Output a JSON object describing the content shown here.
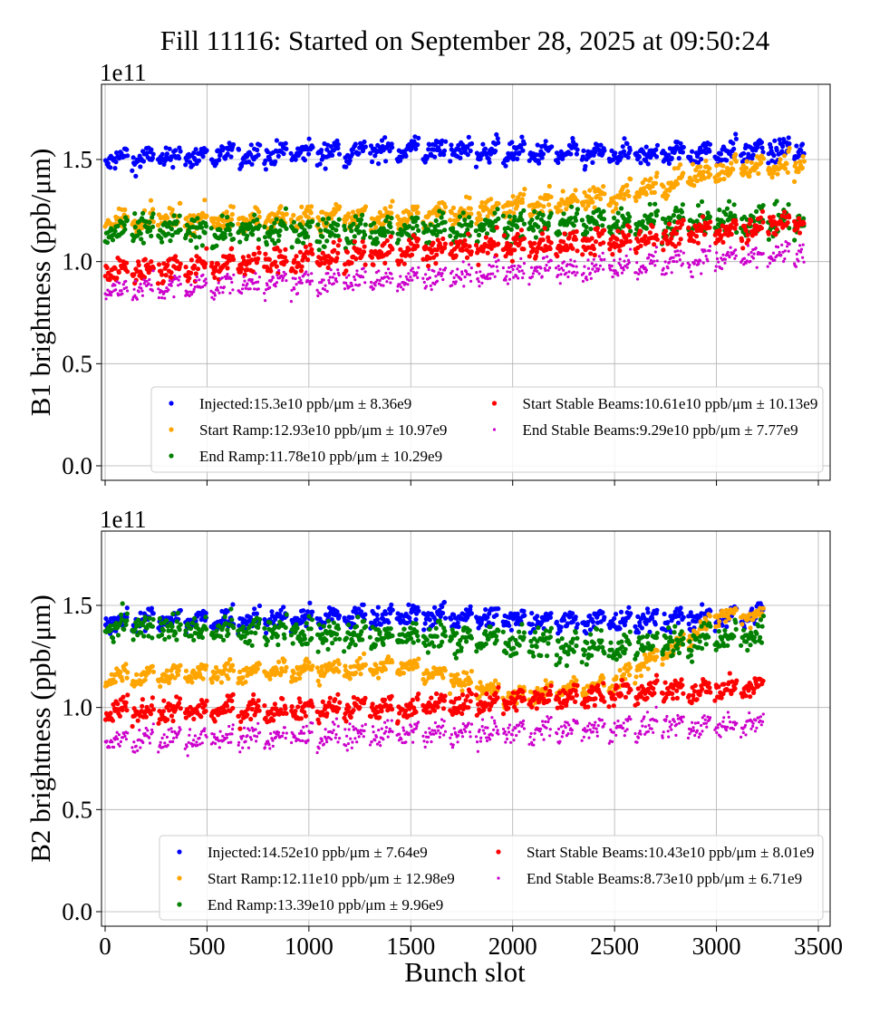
{
  "chart_data": [
    {
      "type": "scatter",
      "title": "Fill 11116: Started on September 28, 2025 at 09:50:24",
      "ylabel": "B1 brightness (ppb/μm)",
      "xlabel": "",
      "offset_label": "1e11",
      "xlim": [
        0,
        3500
      ],
      "ylim": [
        -0.05,
        1.87
      ],
      "xticks": [
        "0",
        "500",
        "1000",
        "1500",
        "2000",
        "2500",
        "3000",
        "3500"
      ],
      "yticks": [
        "0.0",
        "0.5",
        "1.0",
        "1.5"
      ],
      "grid": true,
      "legend_position": "lower-right",
      "bunch_range": [
        0,
        3430
      ],
      "series": [
        {
          "name": "Injected",
          "legend": "Injected:15.3e10 ppb/μm ± 8.36e9",
          "color": "#0000ff",
          "spread": 0.05,
          "levels": [
            [
              0,
              1.5
            ],
            [
              1500,
              1.55
            ],
            [
              2500,
              1.52
            ],
            [
              3430,
              1.55
            ]
          ]
        },
        {
          "name": "Start Ramp",
          "legend": "Start Ramp:12.93e10 ppb/μm ± 10.97e9",
          "color": "#ffa500",
          "spread": 0.05,
          "levels": [
            [
              0,
              1.2
            ],
            [
              1500,
              1.22
            ],
            [
              2500,
              1.32
            ],
            [
              3000,
              1.45
            ],
            [
              3430,
              1.48
            ]
          ]
        },
        {
          "name": "End Ramp",
          "legend": "End Ramp:11.78e10 ppb/μm ± 10.29e9",
          "color": "#008000",
          "spread": 0.07,
          "levels": [
            [
              0,
              1.15
            ],
            [
              1500,
              1.15
            ],
            [
              2500,
              1.2
            ],
            [
              3430,
              1.2
            ]
          ]
        },
        {
          "name": "Start Stable Beams",
          "legend": "Start Stable Beams:10.61e10 ppb/μm ± 10.13e9",
          "color": "#ff0000",
          "spread": 0.06,
          "levels": [
            [
              0,
              0.95
            ],
            [
              1500,
              1.05
            ],
            [
              2500,
              1.1
            ],
            [
              3430,
              1.2
            ]
          ]
        },
        {
          "name": "End Stable Beams",
          "legend": "End Stable Beams:9.29e10 ppb/μm ± 7.77e9",
          "color": "#cc00cc",
          "spread": 0.05,
          "levels": [
            [
              0,
              0.86
            ],
            [
              1500,
              0.92
            ],
            [
              2500,
              0.98
            ],
            [
              3430,
              1.04
            ]
          ]
        }
      ]
    },
    {
      "type": "scatter",
      "ylabel": "B2 brightness (ppb/μm)",
      "xlabel": "Bunch slot",
      "offset_label": "1e11",
      "xlim": [
        0,
        3500
      ],
      "ylim": [
        -0.05,
        1.87
      ],
      "xticks": [
        "0",
        "500",
        "1000",
        "1500",
        "2000",
        "2500",
        "3000",
        "3500"
      ],
      "yticks": [
        "0.0",
        "0.5",
        "1.0",
        "1.5"
      ],
      "grid": true,
      "legend_position": "lower-right",
      "bunch_range": [
        0,
        3230
      ],
      "series": [
        {
          "name": "Injected",
          "legend": "Injected:14.52e10 ppb/μm ± 7.64e9",
          "color": "#0000ff",
          "spread": 0.05,
          "levels": [
            [
              0,
              1.42
            ],
            [
              1600,
              1.45
            ],
            [
              2500,
              1.42
            ],
            [
              3230,
              1.45
            ]
          ]
        },
        {
          "name": "Start Ramp",
          "legend": "Start Ramp:12.11e10 ppb/μm ± 12.98e9",
          "color": "#ffa500",
          "spread": 0.04,
          "levels": [
            [
              0,
              1.15
            ],
            [
              1500,
              1.2
            ],
            [
              2000,
              1.05
            ],
            [
              2500,
              1.12
            ],
            [
              2800,
              1.3
            ],
            [
              3000,
              1.45
            ],
            [
              3230,
              1.45
            ]
          ]
        },
        {
          "name": "End Ramp",
          "legend": "End Ramp:13.39e10 ppb/μm ± 9.96e9",
          "color": "#008000",
          "spread": 0.07,
          "levels": [
            [
              0,
              1.4
            ],
            [
              1500,
              1.35
            ],
            [
              2500,
              1.3
            ],
            [
              3230,
              1.35
            ]
          ]
        },
        {
          "name": "Start Stable Beams",
          "legend": "Start Stable Beams:10.43e10 ppb/μm ± 8.01e9",
          "color": "#ff0000",
          "spread": 0.05,
          "levels": [
            [
              0,
              0.98
            ],
            [
              1500,
              1.0
            ],
            [
              2500,
              1.07
            ],
            [
              3230,
              1.1
            ]
          ]
        },
        {
          "name": "End Stable Beams",
          "legend": "End Stable Beams:8.73e10 ppb/μm ± 6.71e9",
          "color": "#cc00cc",
          "spread": 0.05,
          "levels": [
            [
              0,
              0.84
            ],
            [
              1500,
              0.87
            ],
            [
              2500,
              0.9
            ],
            [
              3230,
              0.92
            ]
          ]
        }
      ]
    }
  ]
}
